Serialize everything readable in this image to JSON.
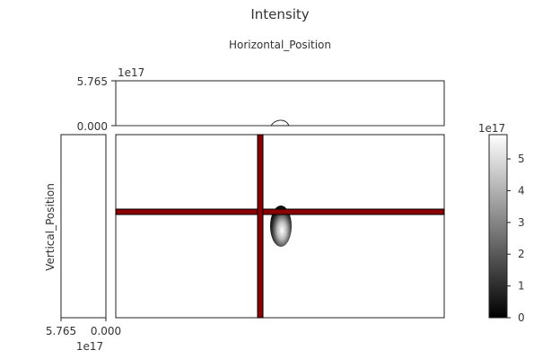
{
  "chart_data": {
    "type": "heatmap",
    "title": "Intensity",
    "xlabel": "Horizontal_Position",
    "ylabel": "Vertical_Position",
    "intensity_scale": "1e17",
    "top_profile": {
      "ytick_labels": [
        "5.765",
        "0.000"
      ],
      "scale": "1e17"
    },
    "side_profile": {
      "xtick_labels": [
        "5.765",
        "0.000"
      ],
      "scale": "1e17"
    },
    "colorbar": {
      "scale": "1e17",
      "ticks": [
        "5",
        "4",
        "3",
        "2",
        "1",
        "0"
      ],
      "range": [
        0,
        5.765
      ],
      "colormap": "gray"
    },
    "crosshair": {
      "color": "#8b0000"
    },
    "spot": {
      "peak": 5.765
    }
  }
}
